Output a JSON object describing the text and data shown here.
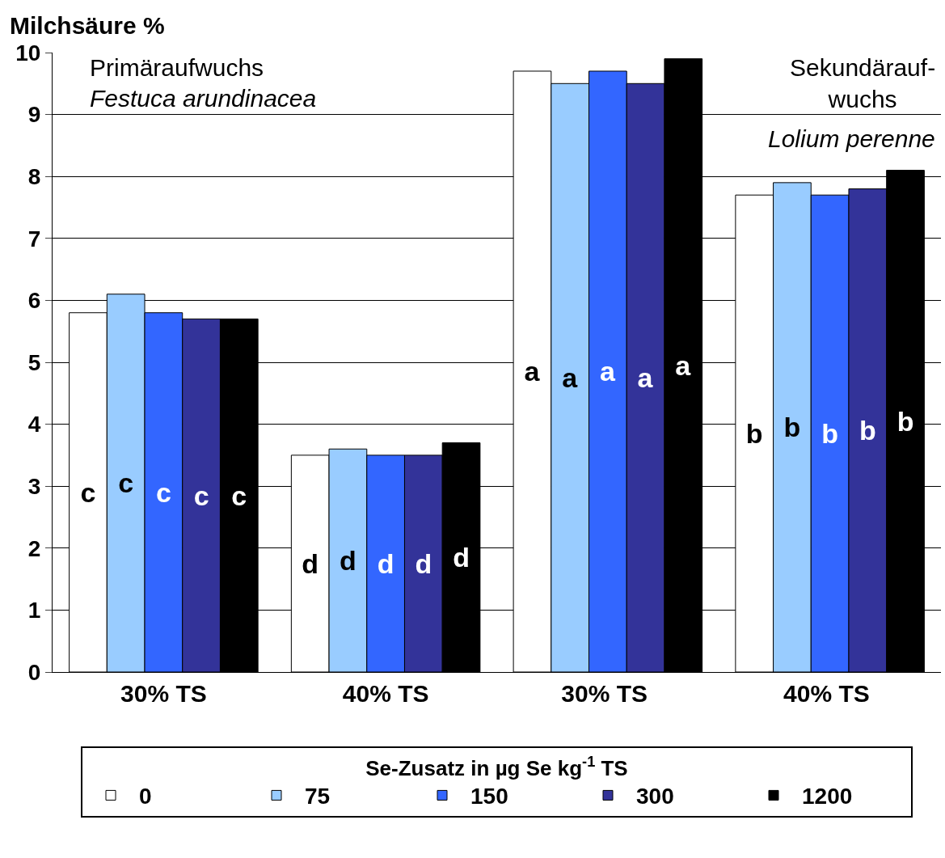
{
  "chart_data": {
    "type": "bar",
    "ylabel": "Milchsäure %",
    "legend_title": "Se-Zusatz in µg Se kg$^{-1}$ TS",
    "categories": [
      "30% TS",
      "40% TS",
      "30% TS ",
      "40% TS "
    ],
    "series": [
      {
        "name": "0",
        "color": "#ffffff",
        "values": [
          5.8,
          3.5,
          9.7,
          7.7
        ],
        "value_labels": [
          "c",
          "d",
          "a",
          "b"
        ]
      },
      {
        "name": "75",
        "color": "#99ccff",
        "values": [
          6.1,
          3.6,
          9.5,
          7.9
        ],
        "value_labels": [
          "c",
          "d",
          "a",
          "b"
        ]
      },
      {
        "name": "150",
        "color": "#3366ff",
        "values": [
          5.8,
          3.5,
          9.7,
          7.7
        ],
        "value_labels": [
          "c",
          "d",
          "a",
          "b"
        ]
      },
      {
        "name": "300",
        "color": "#333399",
        "values": [
          5.7,
          3.5,
          9.5,
          7.8
        ],
        "value_labels": [
          "c",
          "d",
          "a",
          "b"
        ]
      },
      {
        "name": "1200",
        "color": "#000000",
        "values": [
          5.7,
          3.7,
          9.9,
          8.1
        ],
        "value_labels": [
          "c",
          "d",
          "a",
          "b"
        ]
      }
    ],
    "ylim": [
      0,
      10
    ],
    "yticks": [
      0,
      1,
      2,
      3,
      4,
      5,
      6,
      7,
      8,
      9,
      10
    ],
    "grid": "y",
    "legend": "bottom",
    "annotations": [
      "Primäraufwuchs",
      "Festuca arundinacea",
      "Sekundärauf-\nwuchs",
      "Lolium perenne"
    ]
  }
}
